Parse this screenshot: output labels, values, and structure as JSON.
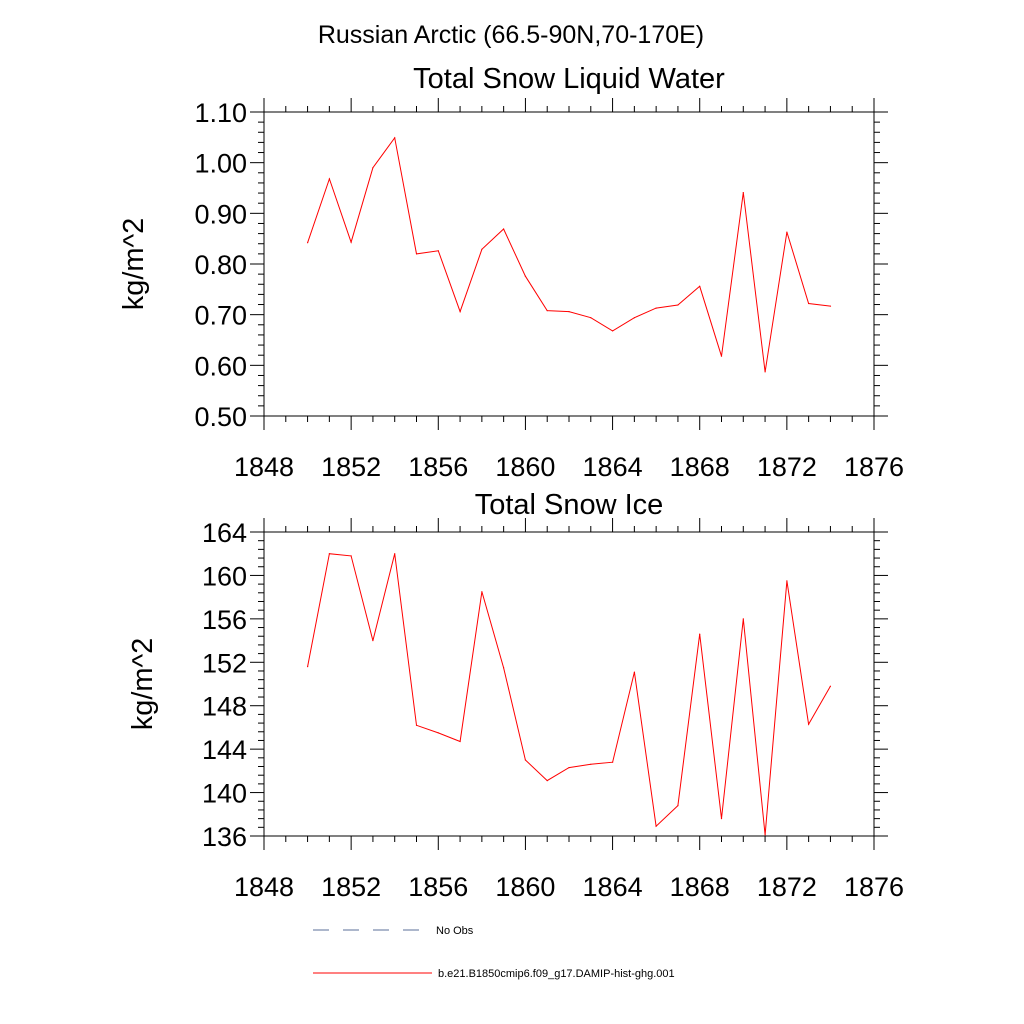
{
  "main_title": "Russian Arctic (66.5-90N,70-170E)",
  "legend": [
    {
      "label": "No Obs",
      "color": "#5b6f9a",
      "style": "dashed"
    },
    {
      "label": "b.e21.B1850cmip6.f09_g17.DAMIP-hist-ghg.001",
      "color": "#ff0000",
      "style": "solid"
    }
  ],
  "chart_data": [
    {
      "type": "line",
      "title": "Total Snow Liquid Water",
      "xlabel": "",
      "ylabel": "kg/m^2",
      "xlim": [
        1848,
        1876
      ],
      "ylim": [
        0.5,
        1.1
      ],
      "xticks": [
        1848,
        1852,
        1856,
        1860,
        1864,
        1868,
        1872,
        1876
      ],
      "xtick_labels": [
        "1848",
        "1852",
        "1856",
        "1860",
        "1864",
        "1868",
        "1872",
        "1876"
      ],
      "yticks": [
        0.5,
        0.6,
        0.7,
        0.8,
        0.9,
        1.0,
        1.1
      ],
      "ytick_labels": [
        "0.50",
        "0.60",
        "0.70",
        "0.80",
        "0.90",
        "1.00",
        "1.10"
      ],
      "grid": false,
      "series": [
        {
          "name": "b.e21.B1850cmip6.f09_g17.DAMIP-hist-ghg.001",
          "color": "#ff0000",
          "x": [
            1850,
            1851,
            1852,
            1853,
            1854,
            1855,
            1856,
            1857,
            1858,
            1859,
            1860,
            1861,
            1862,
            1863,
            1864,
            1865,
            1866,
            1867,
            1868,
            1869,
            1870,
            1871,
            1872,
            1873,
            1874
          ],
          "values": [
            0.842,
            0.968,
            0.843,
            0.99,
            1.049,
            0.82,
            0.826,
            0.706,
            0.829,
            0.869,
            0.776,
            0.708,
            0.706,
            0.694,
            0.668,
            0.694,
            0.713,
            0.719,
            0.756,
            0.618,
            0.941,
            0.587,
            0.863,
            0.722,
            0.717
          ]
        }
      ]
    },
    {
      "type": "line",
      "title": "Total Snow Ice",
      "xlabel": "",
      "ylabel": "kg/m^2",
      "xlim": [
        1848,
        1876
      ],
      "ylim": [
        136,
        164
      ],
      "xticks": [
        1848,
        1852,
        1856,
        1860,
        1864,
        1868,
        1872,
        1876
      ],
      "xtick_labels": [
        "1848",
        "1852",
        "1856",
        "1860",
        "1864",
        "1868",
        "1872",
        "1876"
      ],
      "yticks": [
        136,
        140,
        144,
        148,
        152,
        156,
        160,
        164
      ],
      "ytick_labels": [
        "136",
        "140",
        "144",
        "148",
        "152",
        "156",
        "160",
        "164"
      ],
      "grid": false,
      "series": [
        {
          "name": "b.e21.B1850cmip6.f09_g17.DAMIP-hist-ghg.001",
          "color": "#ff0000",
          "x": [
            1850,
            1851,
            1852,
            1853,
            1854,
            1855,
            1856,
            1857,
            1858,
            1859,
            1860,
            1861,
            1862,
            1863,
            1864,
            1865,
            1866,
            1867,
            1868,
            1869,
            1870,
            1871,
            1872,
            1873,
            1874
          ],
          "values": [
            151.6,
            162.0,
            161.8,
            154.0,
            162.0,
            146.2,
            145.5,
            144.7,
            158.5,
            151.5,
            143.0,
            141.1,
            142.3,
            142.6,
            142.8,
            151.1,
            136.9,
            138.8,
            154.6,
            137.6,
            156.0,
            136.1,
            159.5,
            146.3,
            149.8
          ]
        }
      ]
    }
  ]
}
